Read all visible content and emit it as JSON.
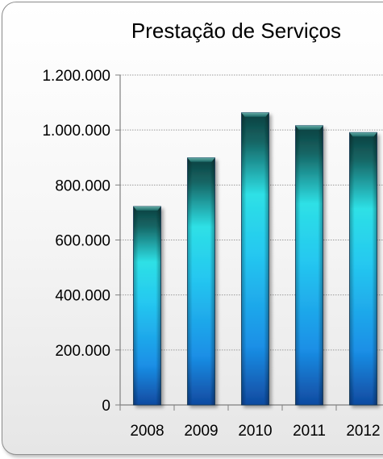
{
  "chart_data": {
    "type": "bar",
    "title": "Prestação de Serviços",
    "xlabel": "",
    "ylabel": "",
    "categories": [
      "2008",
      "2009",
      "2010",
      "2011",
      "2012"
    ],
    "values": [
      722000,
      899000,
      1063000,
      1016000,
      991000
    ],
    "ylim": [
      0,
      1200000
    ],
    "y_ticks": [
      {
        "value": 0,
        "label": "0"
      },
      {
        "value": 200000,
        "label": "200.000"
      },
      {
        "value": 400000,
        "label": "400.000"
      },
      {
        "value": 600000,
        "label": "600.000"
      },
      {
        "value": 800000,
        "label": "800.000"
      },
      {
        "value": 1000000,
        "label": "1.000.000"
      },
      {
        "value": 1200000,
        "label": "1.200.000"
      }
    ],
    "grid": true,
    "legend": "none"
  }
}
